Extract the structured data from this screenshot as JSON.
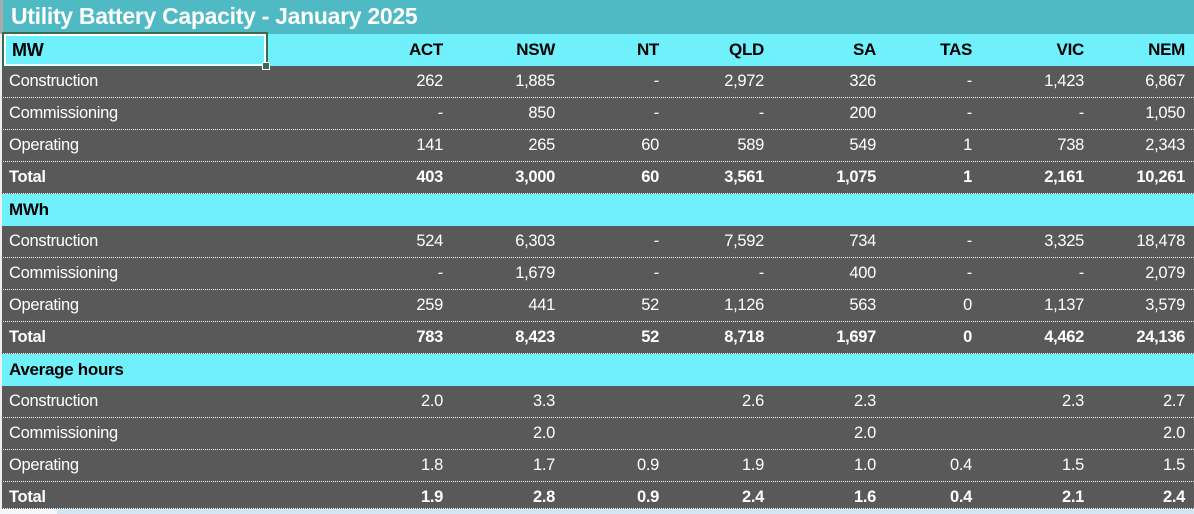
{
  "title": "Utility Battery Capacity - January 2025",
  "selected_cell_label": "MW",
  "columns": [
    "ACT",
    "NSW",
    "NT",
    "QLD",
    "SA",
    "TAS",
    "VIC",
    "NEM"
  ],
  "sections": [
    {
      "name": "MW",
      "rows": [
        {
          "label": "Construction",
          "bold": false,
          "values": [
            "262",
            "1,885",
            "-",
            "2,972",
            "326",
            "-",
            "1,423",
            "6,867"
          ]
        },
        {
          "label": "Commissioning",
          "bold": false,
          "values": [
            "-",
            "850",
            "-",
            "-",
            "200",
            "-",
            "-",
            "1,050"
          ]
        },
        {
          "label": "Operating",
          "bold": false,
          "values": [
            "141",
            "265",
            "60",
            "589",
            "549",
            "1",
            "738",
            "2,343"
          ]
        },
        {
          "label": "Total",
          "bold": true,
          "values": [
            "403",
            "3,000",
            "60",
            "3,561",
            "1,075",
            "1",
            "2,161",
            "10,261"
          ]
        }
      ]
    },
    {
      "name": "MWh",
      "rows": [
        {
          "label": "Construction",
          "bold": false,
          "values": [
            "524",
            "6,303",
            "-",
            "7,592",
            "734",
            "-",
            "3,325",
            "18,478"
          ]
        },
        {
          "label": "Commissioning",
          "bold": false,
          "values": [
            "-",
            "1,679",
            "-",
            "-",
            "400",
            "-",
            "-",
            "2,079"
          ]
        },
        {
          "label": "Operating",
          "bold": false,
          "values": [
            "259",
            "441",
            "52",
            "1,126",
            "563",
            "0",
            "1,137",
            "3,579"
          ]
        },
        {
          "label": "Total",
          "bold": true,
          "values": [
            "783",
            "8,423",
            "52",
            "8,718",
            "1,697",
            "0",
            "4,462",
            "24,136"
          ]
        }
      ]
    },
    {
      "name": "Average hours",
      "rows": [
        {
          "label": "Construction",
          "bold": false,
          "values": [
            "2.0",
            "3.3",
            "",
            "2.6",
            "2.3",
            "",
            "2.3",
            "2.7"
          ]
        },
        {
          "label": "Commissioning",
          "bold": false,
          "values": [
            "",
            "2.0",
            "",
            "",
            "2.0",
            "",
            "",
            "2.0"
          ]
        },
        {
          "label": "Operating",
          "bold": false,
          "values": [
            "1.8",
            "1.7",
            "0.9",
            "1.9",
            "1.0",
            "0.4",
            "1.5",
            "1.5"
          ]
        },
        {
          "label": "Total",
          "bold": true,
          "values": [
            "1.9",
            "2.8",
            "0.9",
            "2.4",
            "1.6",
            "0.4",
            "2.1",
            "2.4"
          ]
        }
      ]
    }
  ],
  "colors": {
    "title_bar": "#4fb9c4",
    "header_fill": "#6ff0fb",
    "header_text": "#000000",
    "row_fill": "#595959",
    "row_text": "#ffffff",
    "selection_border": "#3a6b50",
    "bottom_strip": "#d2e6f2"
  }
}
